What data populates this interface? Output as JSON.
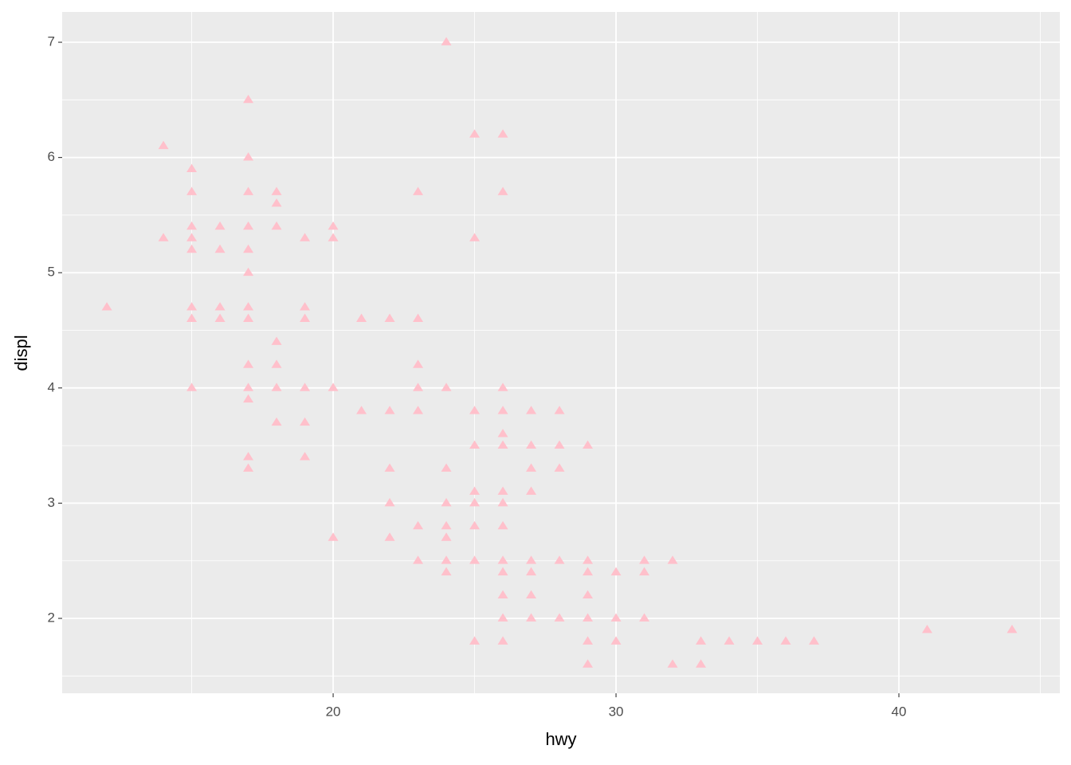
{
  "chart_data": {
    "type": "scatter",
    "x_label": "hwy",
    "y_label": "displ",
    "color": "#ffc0cb",
    "shape": "triangle",
    "grid": true,
    "xlim": [
      10.42,
      45.69
    ],
    "ylim": [
      1.35,
      7.263
    ],
    "xticks": [
      20,
      30,
      40
    ],
    "yticks": [
      2,
      3,
      4,
      5,
      6,
      7
    ],
    "xminor": [
      15,
      25,
      35,
      45
    ],
    "yminor": [
      1.5,
      2.5,
      3.5,
      4.5,
      5.5,
      6.5
    ],
    "x": [
      24,
      17,
      25,
      26,
      14,
      17,
      15,
      15,
      17,
      18,
      23,
      26,
      18,
      15,
      16,
      17,
      18,
      20,
      14,
      15,
      19,
      20,
      25,
      15,
      16,
      17,
      17,
      12,
      15,
      16,
      17,
      19,
      15,
      16,
      17,
      19,
      21,
      22,
      23,
      18,
      17,
      18,
      23,
      15,
      17,
      18,
      19,
      20,
      23,
      24,
      26,
      17,
      21,
      22,
      23,
      25,
      26,
      27,
      28,
      18,
      19,
      26,
      25,
      26,
      27,
      28,
      29,
      17,
      19,
      17,
      22,
      24,
      27,
      28,
      25,
      26,
      27,
      22,
      24,
      25,
      26,
      23,
      24,
      25,
      26,
      20,
      22,
      24,
      23,
      24,
      25,
      26,
      27,
      28,
      29,
      31,
      32,
      24,
      26,
      27,
      29,
      30,
      31,
      26,
      27,
      29,
      26,
      27,
      28,
      29,
      30,
      31,
      41,
      44,
      25,
      26,
      29,
      30,
      33,
      34,
      35,
      36,
      37,
      29,
      32,
      33
    ],
    "y": [
      7.0,
      6.5,
      6.2,
      6.2,
      6.1,
      6.0,
      5.9,
      5.7,
      5.7,
      5.7,
      5.7,
      5.7,
      5.6,
      5.4,
      5.4,
      5.4,
      5.4,
      5.4,
      5.3,
      5.3,
      5.3,
      5.3,
      5.3,
      5.2,
      5.2,
      5.2,
      5.0,
      4.7,
      4.7,
      4.7,
      4.7,
      4.7,
      4.6,
      4.6,
      4.6,
      4.6,
      4.6,
      4.6,
      4.6,
      4.4,
      4.2,
      4.2,
      4.2,
      4.0,
      4.0,
      4.0,
      4.0,
      4.0,
      4.0,
      4.0,
      4.0,
      3.9,
      3.8,
      3.8,
      3.8,
      3.8,
      3.8,
      3.8,
      3.8,
      3.7,
      3.7,
      3.6,
      3.5,
      3.5,
      3.5,
      3.5,
      3.5,
      3.4,
      3.4,
      3.3,
      3.3,
      3.3,
      3.3,
      3.3,
      3.1,
      3.1,
      3.1,
      3.0,
      3.0,
      3.0,
      3.0,
      2.8,
      2.8,
      2.8,
      2.8,
      2.7,
      2.7,
      2.7,
      2.5,
      2.5,
      2.5,
      2.5,
      2.5,
      2.5,
      2.5,
      2.5,
      2.5,
      2.4,
      2.4,
      2.4,
      2.4,
      2.4,
      2.4,
      2.2,
      2.2,
      2.2,
      2.0,
      2.0,
      2.0,
      2.0,
      2.0,
      2.0,
      1.9,
      1.9,
      1.8,
      1.8,
      1.8,
      1.8,
      1.8,
      1.8,
      1.8,
      1.8,
      1.8,
      1.6,
      1.6,
      1.6
    ]
  }
}
